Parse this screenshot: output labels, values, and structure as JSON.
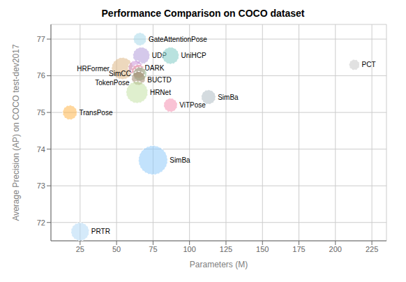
{
  "chart_data": {
    "type": "scatter",
    "title": "Performance Comparison on COCO dataset",
    "xlabel": "Parameters (M)",
    "ylabel": "Average Precision (AP) on COCO test-dev2017",
    "xlim": [
      5,
      235
    ],
    "ylim": [
      71.5,
      77.4
    ],
    "xticks": [
      25,
      50,
      75,
      100,
      125,
      150,
      175,
      200,
      225
    ],
    "yticks": [
      72,
      73,
      74,
      75,
      76,
      77
    ],
    "grid": true,
    "labels": [
      "GateAttentionPose",
      "UDP",
      "UniHCP",
      "HRFormer",
      "DARK",
      "BUCTD",
      "SimCC",
      "TokenPose",
      "HRNet",
      "SimBa",
      "ViTPose",
      "TransPose",
      "SimBa",
      "PRTR",
      "PCT"
    ],
    "x": [
      66,
      67,
      87,
      54,
      63,
      65,
      66,
      65,
      64,
      113,
      87,
      18,
      75,
      25,
      213
    ],
    "values": [
      77.0,
      76.55,
      76.55,
      76.2,
      76.22,
      76.12,
      76.05,
      75.93,
      75.55,
      75.42,
      75.2,
      75.0,
      73.7,
      71.75,
      76.3
    ],
    "size": [
      180,
      300,
      300,
      500,
      220,
      200,
      200,
      200,
      500,
      220,
      200,
      220,
      900,
      350,
      120
    ],
    "colors": [
      "#a8d8ea",
      "#b39ddb",
      "#80cbc4",
      "#deb887",
      "#ce93d8",
      "#ef9a9a",
      "#8fbc8f",
      "#a0896e",
      "#c5e1a5",
      "#b0bec5",
      "#f48fb1",
      "#ffb74d",
      "#90caf9",
      "#b3d9f5",
      "#c8c8c8"
    ]
  }
}
